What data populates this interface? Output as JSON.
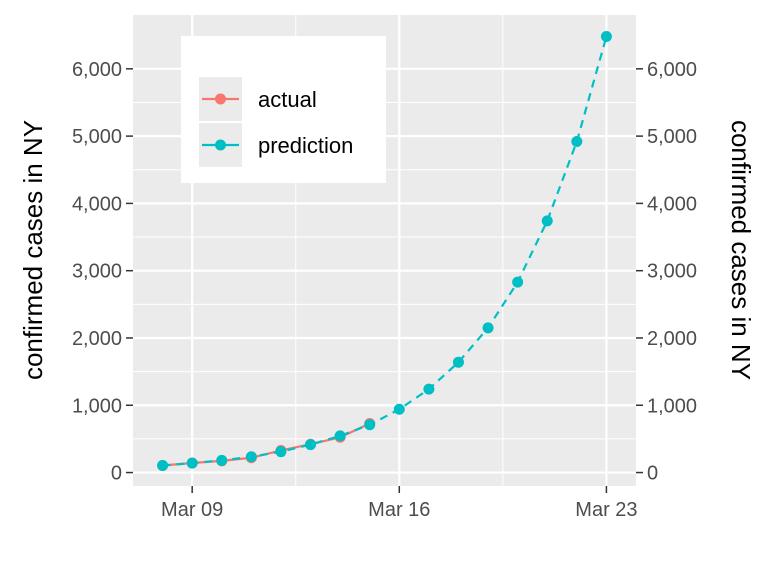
{
  "chart_data": {
    "type": "line",
    "xlabel": "",
    "ylabel": "confirmed cases in NY",
    "ylabel_right": "confirmed cases in NY",
    "x_tick_labels": [
      "Mar 09",
      "Mar 16",
      "Mar 23"
    ],
    "y_ticks": [
      0,
      1000,
      2000,
      3000,
      4000,
      5000,
      6000
    ],
    "y_tick_labels": [
      "0",
      "1,000",
      "2,000",
      "3,000",
      "4,000",
      "5,000",
      "6,000"
    ],
    "ylim": [
      -200,
      6800
    ],
    "xlim": [
      "2020-03-07",
      "2020-03-24"
    ],
    "grid": true,
    "legend_position": "top-left",
    "series": [
      {
        "name": "actual",
        "color": "#F8766D",
        "x": [
          "2020-03-08",
          "2020-03-09",
          "2020-03-10",
          "2020-03-11",
          "2020-03-12",
          "2020-03-13",
          "2020-03-14",
          "2020-03-15"
        ],
        "values": [
          105,
          142,
          173,
          220,
          328,
          421,
          524,
          729
        ]
      },
      {
        "name": "prediction",
        "color": "#00BFC4",
        "x": [
          "2020-03-08",
          "2020-03-09",
          "2020-03-10",
          "2020-03-11",
          "2020-03-12",
          "2020-03-13",
          "2020-03-14",
          "2020-03-15",
          "2020-03-16",
          "2020-03-17",
          "2020-03-18",
          "2020-03-19",
          "2020-03-20",
          "2020-03-21",
          "2020-03-22",
          "2020-03-23"
        ],
        "values": [
          105,
          140,
          180,
          235,
          310,
          415,
          545,
          710,
          940,
          1240,
          1640,
          2150,
          2830,
          3740,
          4920,
          6480
        ]
      }
    ]
  }
}
